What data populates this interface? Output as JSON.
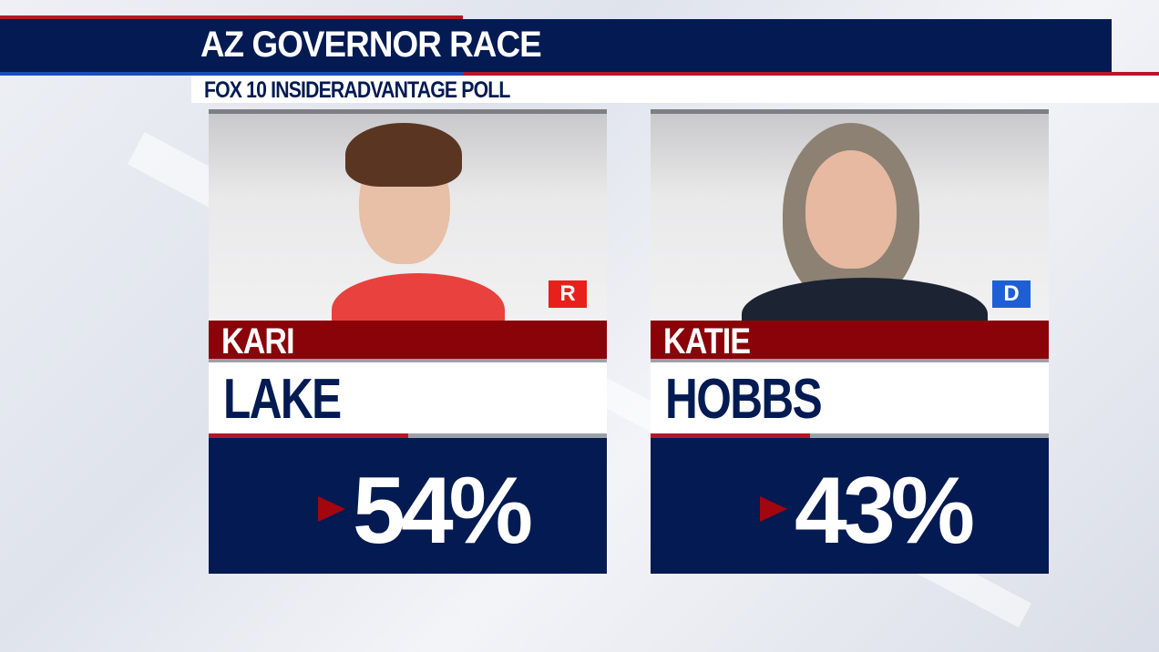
{
  "header": {
    "title": "AZ GOVERNOR RACE",
    "subtitle": "FOX 10 INSIDERADVANTAGE POLL"
  },
  "colors": {
    "navy": "#031a52",
    "red": "#8a0308",
    "republican": "#e8201b",
    "democrat": "#1f5fd6"
  },
  "candidates": [
    {
      "first_name": "KARI",
      "last_name": "LAKE",
      "party": "R",
      "percent": "54%",
      "percent_value": 54,
      "party_color": "#e8201b"
    },
    {
      "first_name": "KATIE",
      "last_name": "HOBBS",
      "party": "D",
      "percent": "43%",
      "percent_value": 43,
      "party_color": "#1f5fd6"
    }
  ]
}
